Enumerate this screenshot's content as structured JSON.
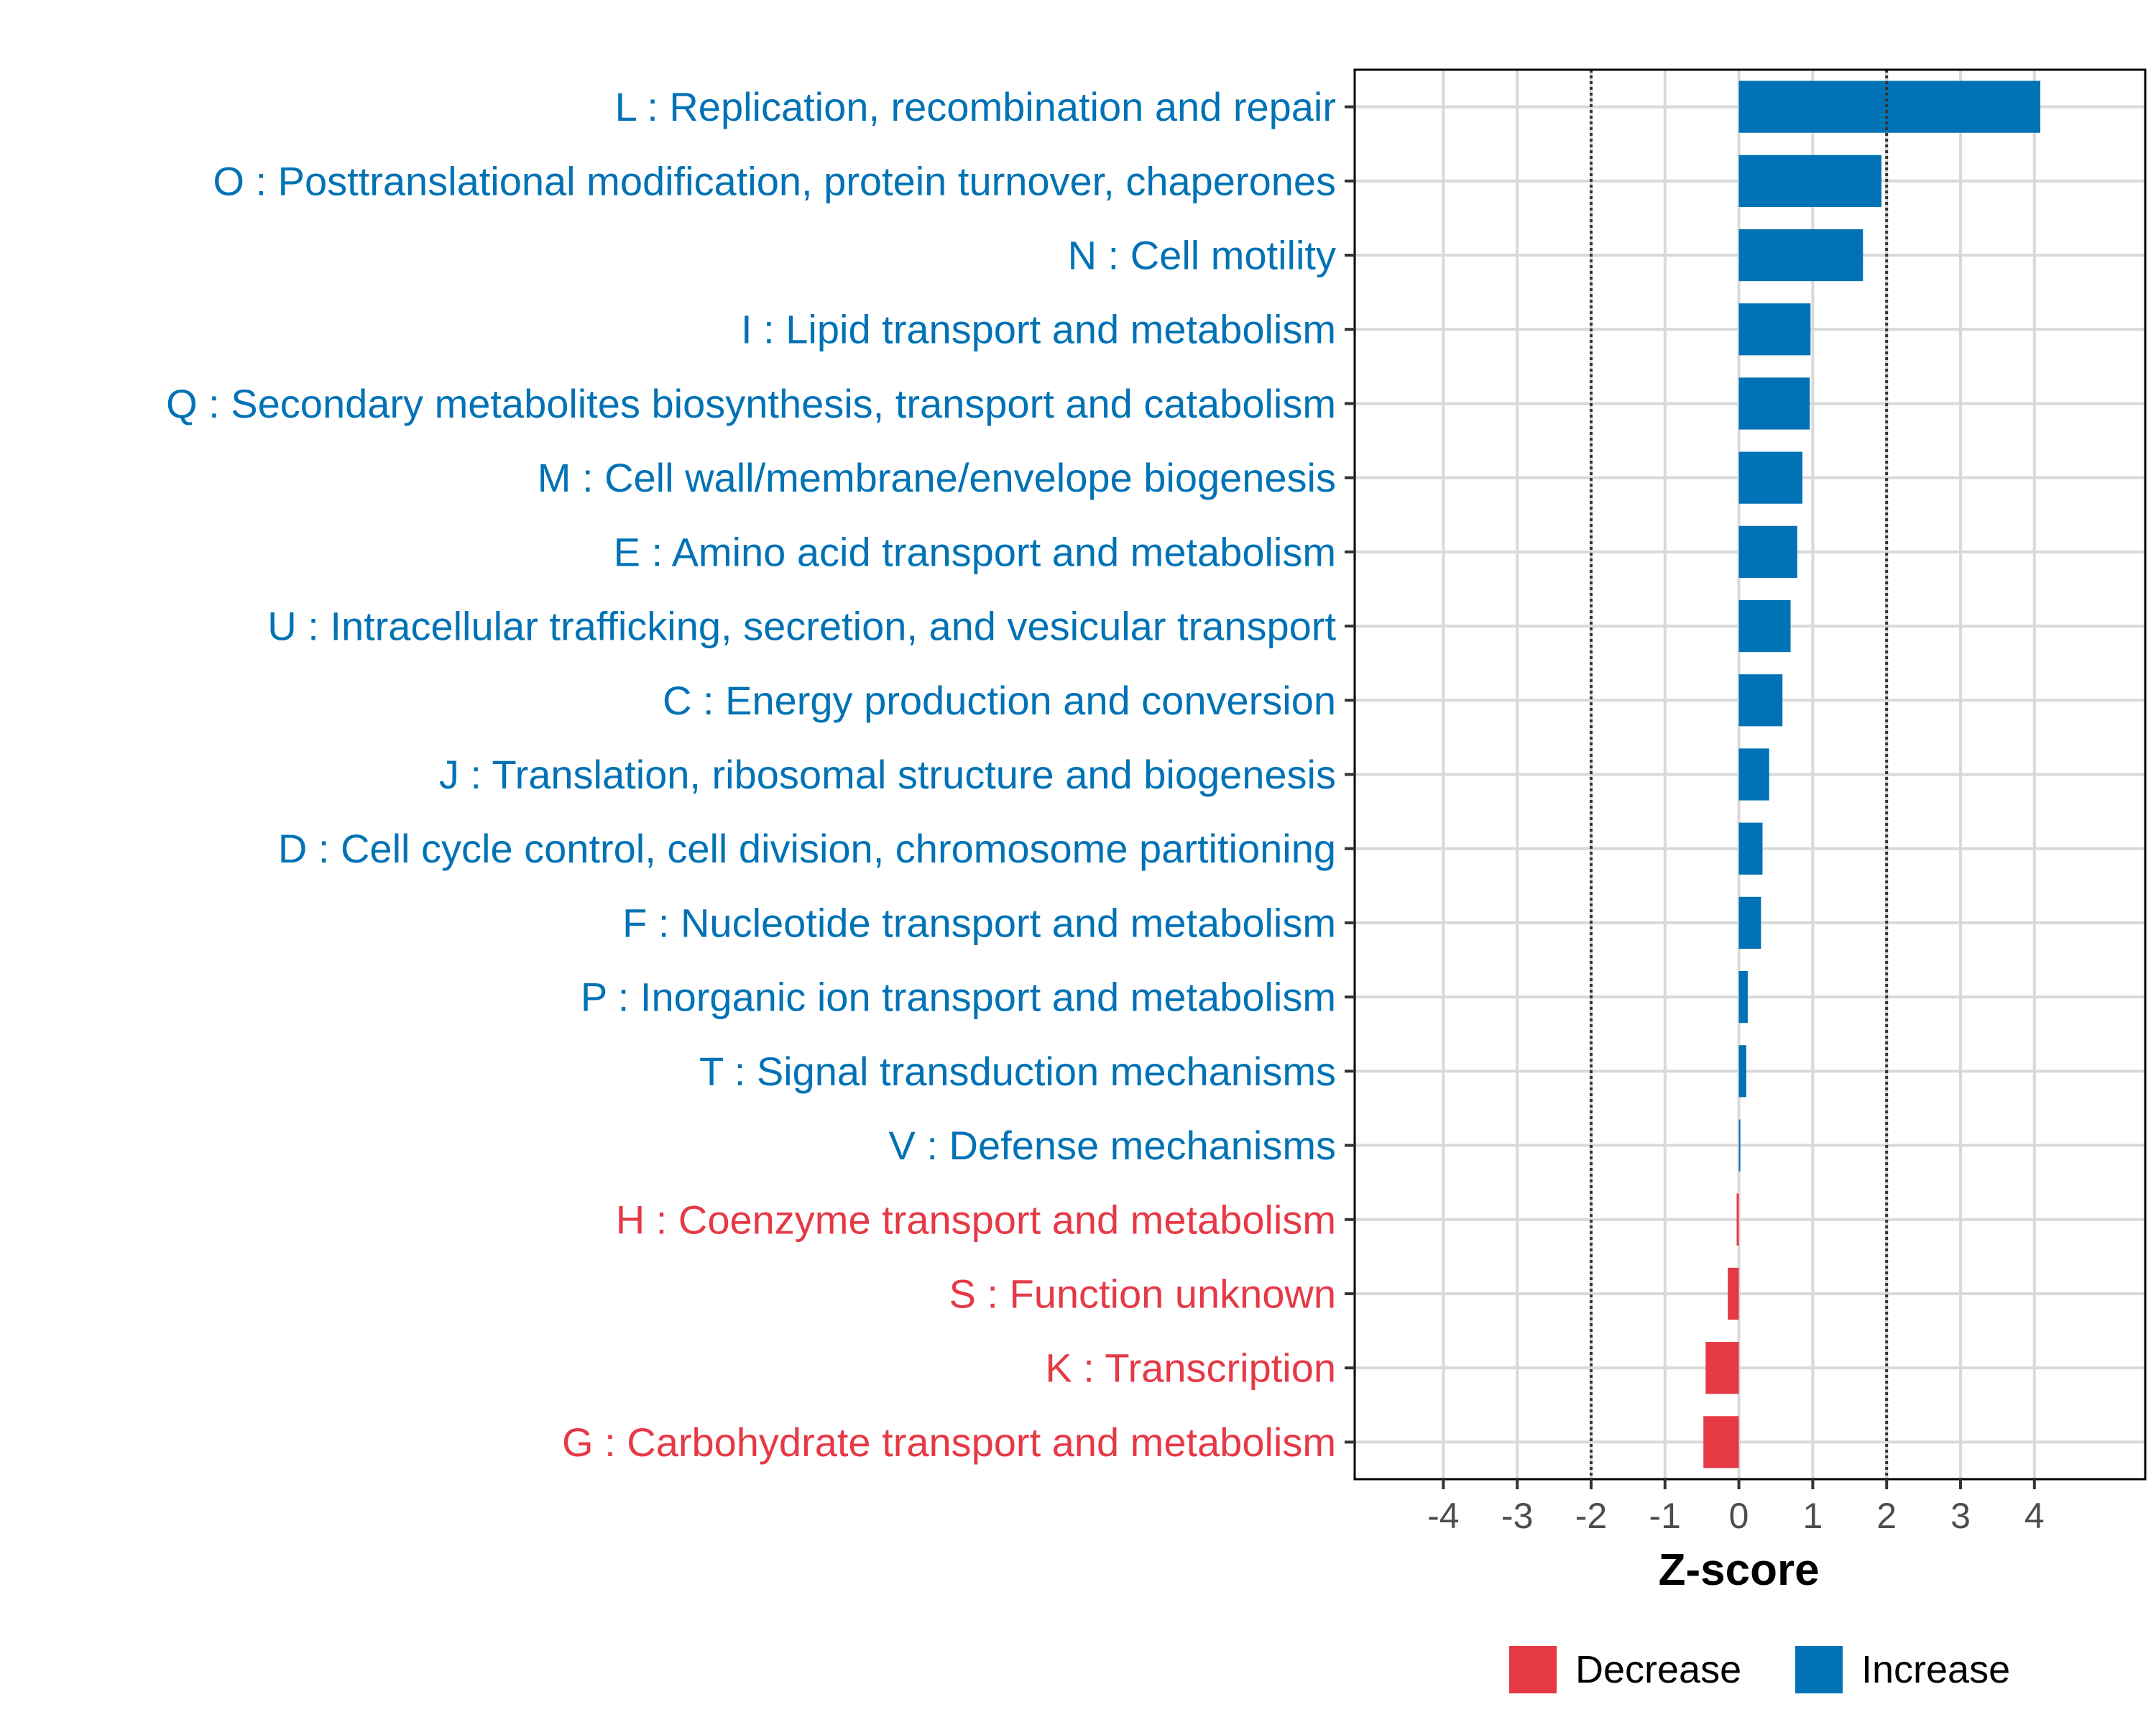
{
  "chart_data": {
    "type": "bar",
    "orientation": "horizontal",
    "xlabel": "Z-score",
    "xlim": [
      -5.2,
      5.5
    ],
    "xticks": [
      -4,
      -3,
      -2,
      -1,
      0,
      1,
      2,
      3,
      4
    ],
    "xtick_labels": [
      "-4",
      "-3",
      "-2",
      "-1",
      "0",
      "1",
      "2",
      "3",
      "4"
    ],
    "reference_lines": [
      -2,
      2
    ],
    "grid": true,
    "colors": {
      "Increase": "#0072B5",
      "Decrease": "#E63946"
    },
    "categories": [
      "L : Replication, recombination and repair",
      "O : Posttranslational modification, protein turnover, chaperones",
      "N : Cell motility",
      "I : Lipid transport and metabolism",
      "Q : Secondary metabolites biosynthesis, transport and catabolism",
      "M : Cell wall/membrane/envelope biogenesis",
      "E : Amino acid transport and metabolism",
      "U : Intracellular trafficking, secretion, and vesicular transport",
      "C : Energy production and conversion",
      "J : Translation, ribosomal structure and biogenesis",
      "D : Cell cycle control, cell division, chromosome partitioning",
      "F : Nucleotide transport and metabolism",
      "P : Inorganic ion transport and metabolism",
      "T : Signal transduction mechanisms",
      "V : Defense mechanisms",
      "H : Coenzyme transport and metabolism",
      "S : Function unknown",
      "K : Transcription",
      "G : Carbohydrate transport and metabolism"
    ],
    "values": [
      4.08,
      1.93,
      1.68,
      0.97,
      0.96,
      0.86,
      0.79,
      0.7,
      0.59,
      0.41,
      0.32,
      0.3,
      0.12,
      0.1,
      0.02,
      -0.03,
      -0.15,
      -0.45,
      -0.48
    ],
    "groups": [
      "Increase",
      "Increase",
      "Increase",
      "Increase",
      "Increase",
      "Increase",
      "Increase",
      "Increase",
      "Increase",
      "Increase",
      "Increase",
      "Increase",
      "Increase",
      "Increase",
      "Increase",
      "Decrease",
      "Decrease",
      "Decrease",
      "Decrease"
    ],
    "legend": {
      "position": "bottom",
      "items": [
        {
          "label": "Decrease",
          "color": "#E63946"
        },
        {
          "label": "Increase",
          "color": "#0072B5"
        }
      ]
    }
  }
}
